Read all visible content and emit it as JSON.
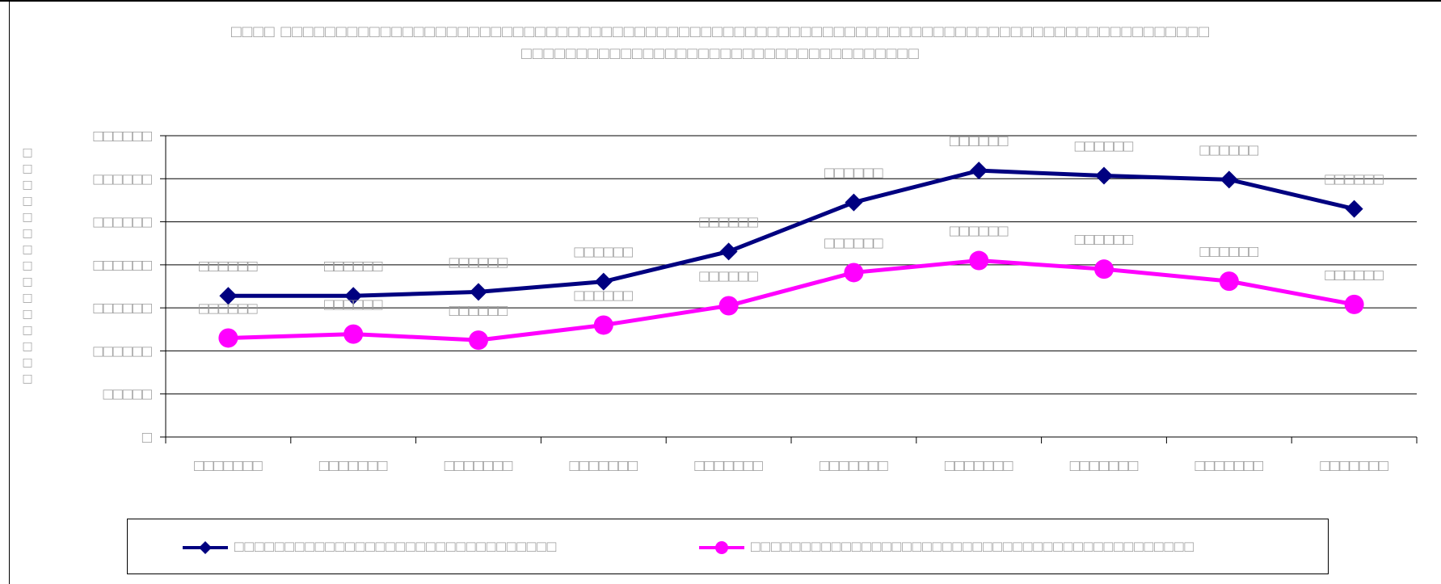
{
  "chart_data": {
    "type": "line",
    "title_lines": [
      "□□□□ □□□□□□□□□□□□□□□□□□□□□□□□□□□□□□□□□□□□□□□□□□□□□□□□□□□□□□□□□□□□□□□□□□□□□□□□□□□□□□□□□□□□",
      "□□□□□□□□□□□□□□□□□□□□□□□□□□□□□□□□□□□□"
    ],
    "ylabel": "□□□□□□□□□□□□□□□",
    "y_tick_labels": [
      "□",
      "□□□□□",
      "□□□□□□",
      "□□□□□□",
      "□□□□□□",
      "□□□□□□",
      "□□□□□□",
      "□□□□□□"
    ],
    "ylim": [
      0,
      7
    ],
    "categories": [
      "□□□□□□□",
      "□□□□□□□",
      "□□□□□□□",
      "□□□□□□□",
      "□□□□□□□",
      "□□□□□□□",
      "□□□□□□□",
      "□□□□□□□",
      "□□□□□□□",
      "□□□□□□□"
    ],
    "grid": true,
    "legend_position": "bottom",
    "series": [
      {
        "name": "□□□□□□□□□□□□□□□□□□□□□□□□□□□□□□□□",
        "marker": "diamond",
        "color": "#000080",
        "values": [
          3.28,
          3.28,
          3.37,
          3.61,
          4.31,
          5.45,
          6.19,
          6.07,
          5.98,
          5.3
        ],
        "data_labels": [
          "□□□□□□",
          "□□□□□□",
          "□□□□□□",
          "□□□□□□",
          "□□□□□□",
          "□□□□□□",
          "□□□□□□",
          "□□□□□□",
          "□□□□□□",
          "□□□□□□"
        ]
      },
      {
        "name": "□□□□□□□□□□□□□□□□□□□□□□□□□□□□□□□□□□□□□□□□□□□□",
        "marker": "circle",
        "color": "#ff00ff",
        "values": [
          2.3,
          2.39,
          2.25,
          2.6,
          3.05,
          3.82,
          4.1,
          3.9,
          3.62,
          3.08
        ],
        "data_labels": [
          "□□□□□□",
          "□□□□□□",
          "□□□□□□",
          "□□□□□□",
          "□□□□□□",
          "□□□□□□",
          "□□□□□□",
          "□□□□□□",
          "□□□□□□",
          "□□□□□□"
        ]
      }
    ]
  }
}
